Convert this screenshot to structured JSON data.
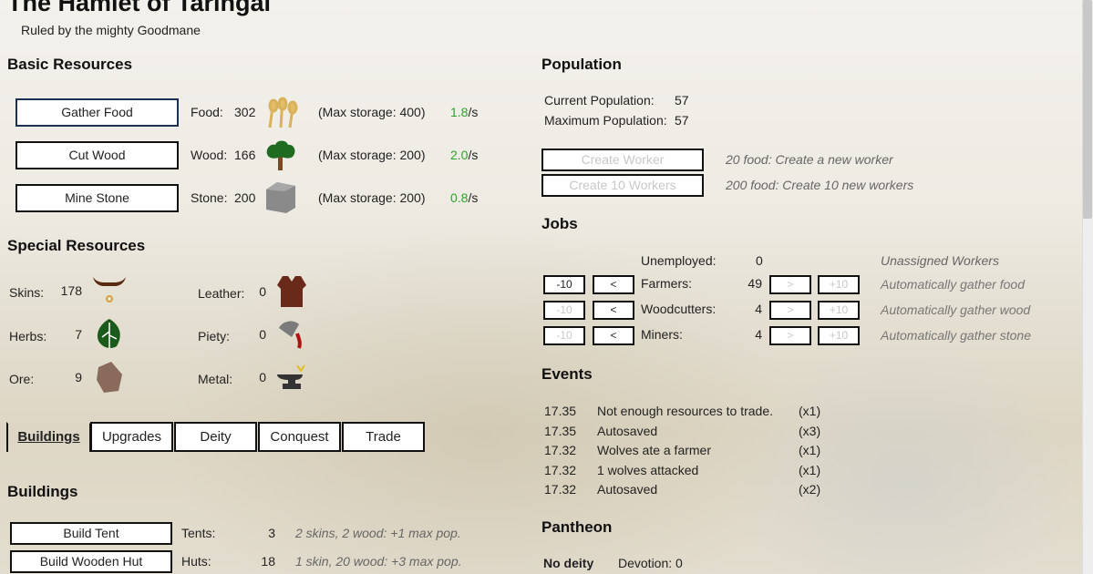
{
  "header": {
    "title": "The Hamlet of Taringal",
    "subtitle": "Ruled by the mighty Goodmane"
  },
  "basic": {
    "heading": "Basic Resources",
    "rows": [
      {
        "button": "Gather Food",
        "label": "Food:",
        "value": "302",
        "icon": "wheat-icon",
        "storage": "(Max storage: 400)",
        "rate": "1.8",
        "unit": "/s"
      },
      {
        "button": "Cut Wood",
        "label": "Wood:",
        "value": "166",
        "icon": "tree-icon",
        "storage": "(Max storage: 200)",
        "rate": "2.0",
        "unit": "/s"
      },
      {
        "button": "Mine Stone",
        "label": "Stone:",
        "value": "200",
        "icon": "stone-block-icon",
        "storage": "(Max storage: 200)",
        "rate": "0.8",
        "unit": "/s"
      }
    ]
  },
  "special": {
    "heading": "Special Resources",
    "items": [
      {
        "label": "Skins:",
        "value": "178",
        "icon": "ox-skull-icon"
      },
      {
        "label": "Herbs:",
        "value": "7",
        "icon": "leaf-icon"
      },
      {
        "label": "Ore:",
        "value": "9",
        "icon": "ore-rock-icon"
      },
      {
        "label": "Leather:",
        "value": "0",
        "icon": "leather-vest-icon"
      },
      {
        "label": "Piety:",
        "value": "0",
        "icon": "chalice-icon"
      },
      {
        "label": "Metal:",
        "value": "0",
        "icon": "anvil-icon"
      }
    ]
  },
  "tabs": [
    "Buildings",
    "Upgrades",
    "Deity",
    "Conquest",
    "Trade"
  ],
  "buildings": {
    "heading": "Buildings",
    "rows": [
      {
        "button": "Build Tent",
        "label": "Tents:",
        "value": "3",
        "desc": "2 skins, 2 wood: +1 max pop."
      },
      {
        "button": "Build Wooden Hut",
        "label": "Huts:",
        "value": "18",
        "desc": "1 skin, 20 wood: +3 max pop."
      }
    ]
  },
  "population": {
    "heading": "Population",
    "current_label": "Current Population:",
    "current": "57",
    "max_label": "Maximum Population:",
    "max": "57",
    "create": [
      {
        "button": "Create Worker",
        "desc": "20 food: Create a new worker"
      },
      {
        "button": "Create 10 Workers",
        "desc": "200 food: Create 10 new workers"
      }
    ]
  },
  "jobs": {
    "heading": "Jobs",
    "unemployed": {
      "label": "Unemployed:",
      "value": "0",
      "desc": "Unassigned Workers"
    },
    "minus10": "-10",
    "minus": "<",
    "plus": ">",
    "plus10": "+10",
    "rows": [
      {
        "label": "Farmers:",
        "value": "49",
        "desc": "Automatically gather food"
      },
      {
        "label": "Woodcutters:",
        "value": "4",
        "desc": "Automatically gather wood"
      },
      {
        "label": "Miners:",
        "value": "4",
        "desc": "Automatically gather stone"
      }
    ]
  },
  "events": {
    "heading": "Events",
    "rows": [
      {
        "time": "17.35",
        "msg": "Not enough resources to trade.",
        "count": "(x1)"
      },
      {
        "time": "17.35",
        "msg": "Autosaved",
        "count": "(x3)"
      },
      {
        "time": "17.32",
        "msg": "Wolves ate a farmer",
        "count": "(x1)"
      },
      {
        "time": "17.32",
        "msg": "1 wolves attacked",
        "count": "(x1)"
      },
      {
        "time": "17.32",
        "msg": "Autosaved",
        "count": "(x2)"
      }
    ]
  },
  "pantheon": {
    "heading": "Pantheon",
    "deity": "No deity",
    "devotion": "Devotion: 0"
  }
}
